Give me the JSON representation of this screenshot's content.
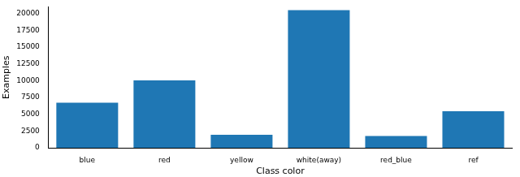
{
  "chart_data": {
    "type": "bar",
    "x_label": "Class color",
    "y_label": "Examples",
    "categories": [
      "blue",
      "red",
      "yellow",
      "white(away)",
      "red_blue",
      "ref"
    ],
    "values": [
      6700,
      10050,
      1950,
      20500,
      1750,
      5450
    ],
    "color": "#1f77b4",
    "ylim": [
      0,
      21000
    ],
    "yticks": [
      0,
      2500,
      5000,
      7500,
      10000,
      12500,
      15000,
      17500,
      20000
    ],
    "grid": false
  }
}
